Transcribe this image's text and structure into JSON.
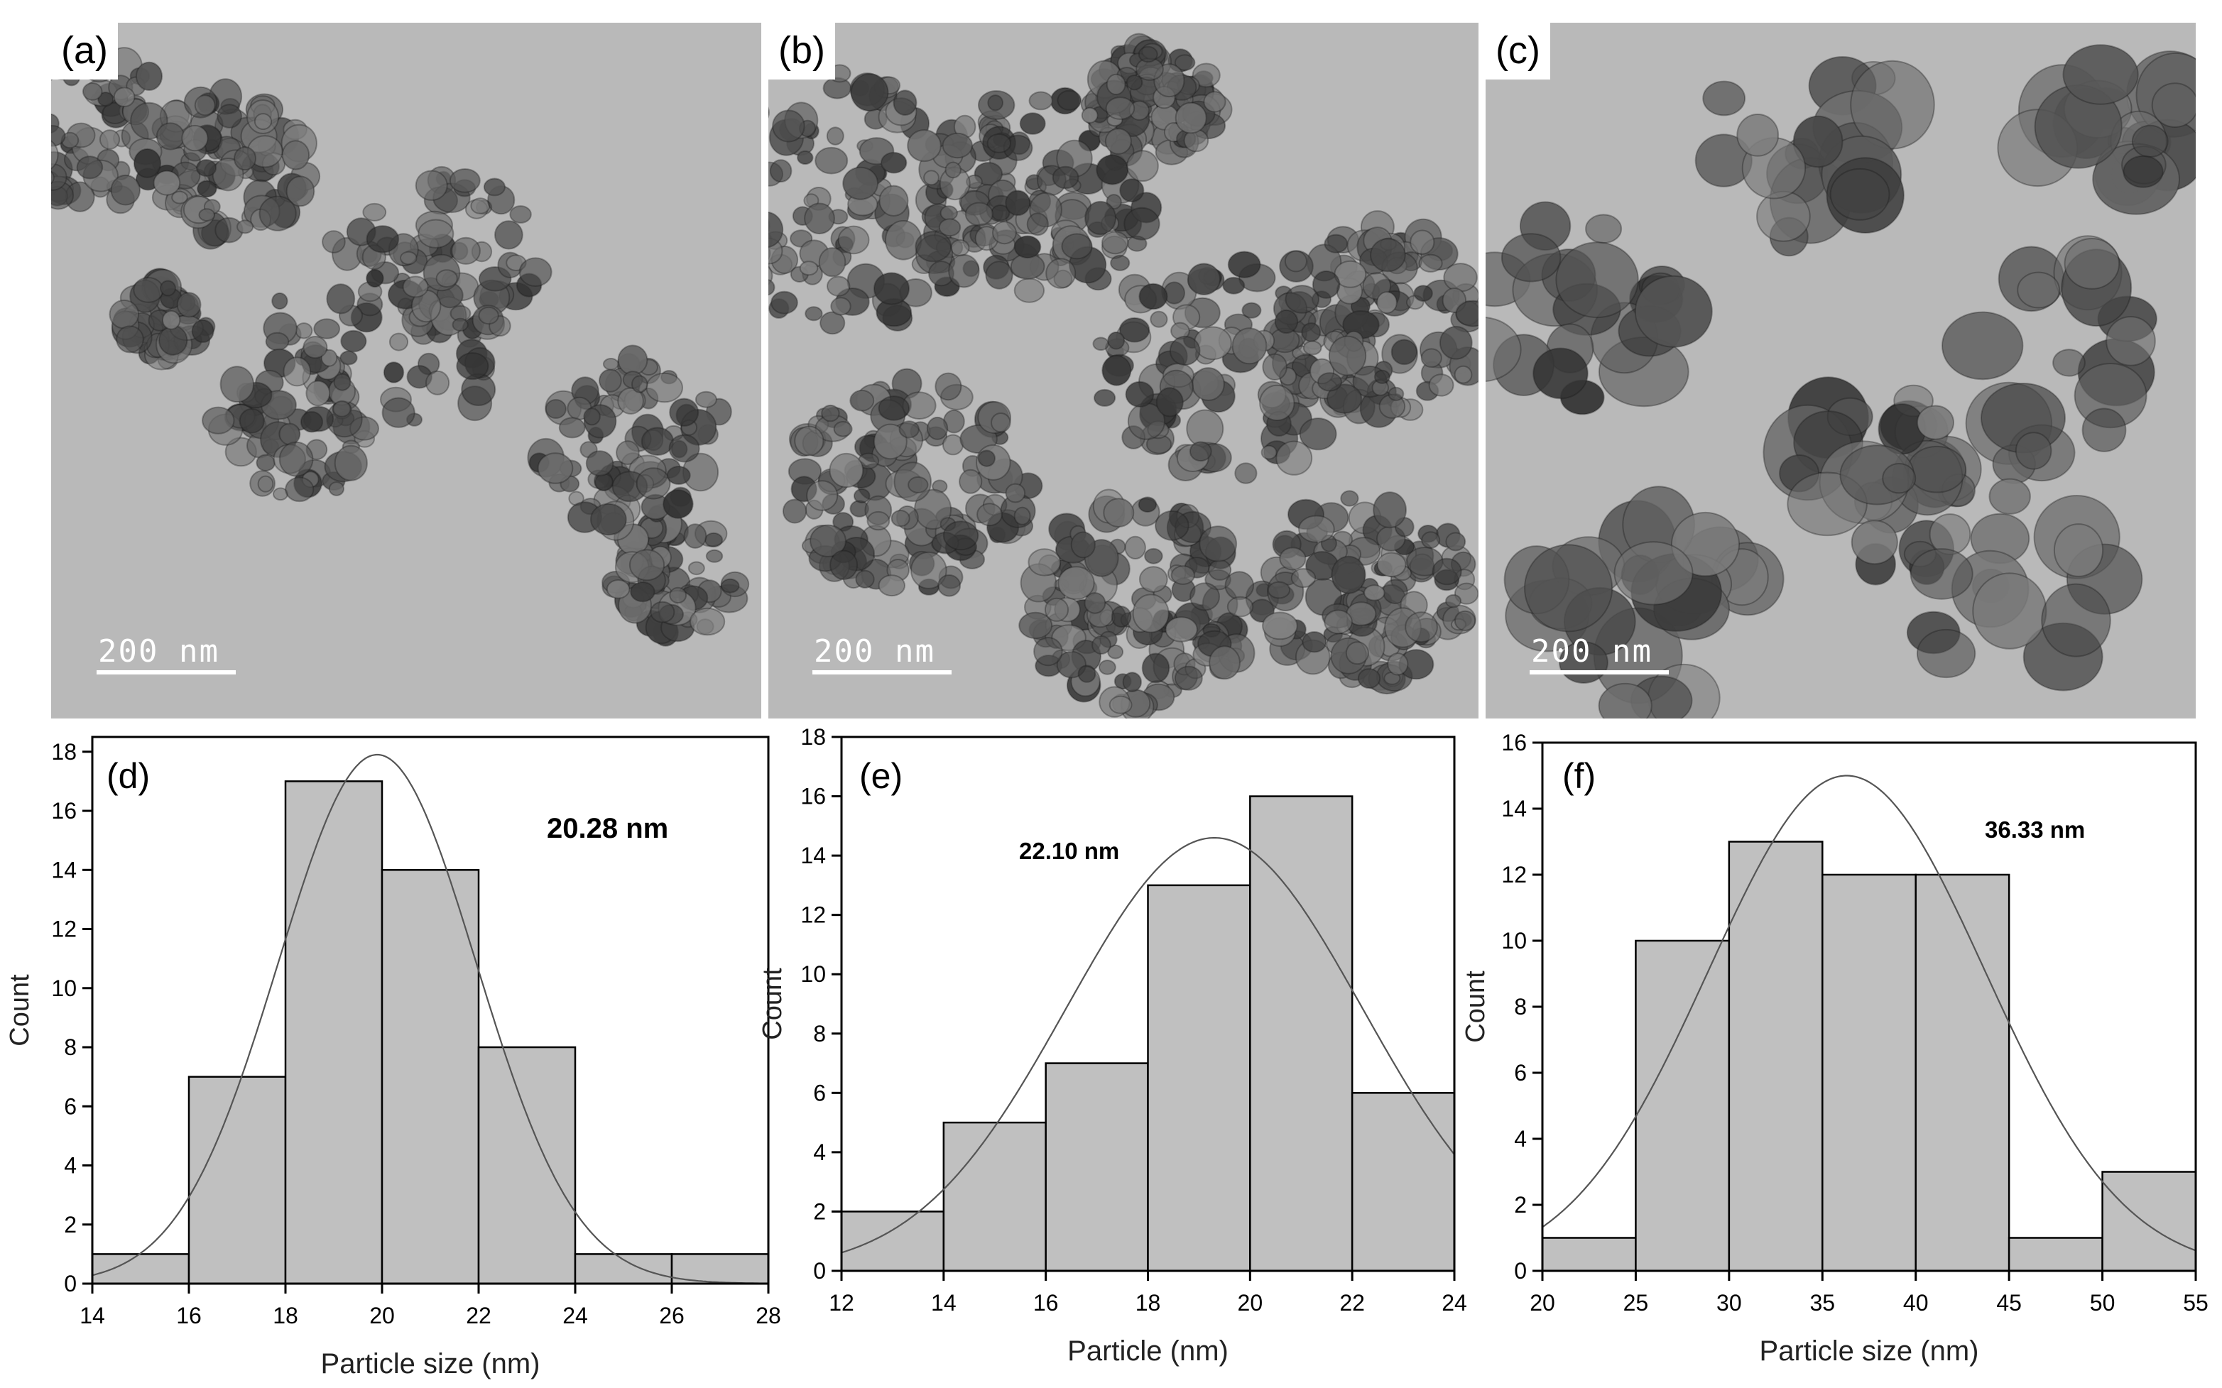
{
  "tem_panels": [
    {
      "label": "(a)",
      "scale_label": "200  nm"
    },
    {
      "label": "(b)",
      "scale_label": "200  nm"
    },
    {
      "label": "(c)",
      "scale_label": "200  nm"
    }
  ],
  "chart_data": [
    {
      "type": "bar",
      "panel_label": "(d)",
      "annotation": "20.28 nm",
      "xlabel": "Particle size (nm)",
      "ylabel": "Count",
      "xlim": [
        14,
        28
      ],
      "ylim": [
        0,
        18.5
      ],
      "xticks": [
        14,
        16,
        18,
        20,
        22,
        24,
        26,
        28
      ],
      "yticks": [
        0,
        2,
        4,
        6,
        8,
        10,
        12,
        14,
        16,
        18
      ],
      "bin_edges": [
        14,
        16,
        18,
        20,
        22,
        24,
        26,
        28
      ],
      "values": [
        1,
        7,
        17,
        14,
        8,
        1,
        1
      ],
      "fit": {
        "type": "gaussian",
        "center": 19.9,
        "sigma": 2.05,
        "peak": 17.9
      }
    },
    {
      "type": "bar",
      "panel_label": "(e)",
      "annotation": "22.10 nm",
      "xlabel": "Particle (nm)",
      "ylabel": "Count",
      "xlim": [
        12,
        24
      ],
      "ylim": [
        0,
        18
      ],
      "xticks": [
        12,
        14,
        16,
        18,
        20,
        22,
        24
      ],
      "yticks": [
        0,
        2,
        4,
        6,
        8,
        10,
        12,
        14,
        16,
        18
      ],
      "bin_edges": [
        12,
        14,
        16,
        18,
        20,
        22,
        24
      ],
      "values": [
        2,
        5,
        7,
        13,
        16,
        6
      ],
      "fit": {
        "type": "gaussian",
        "center": 19.3,
        "sigma": 2.9,
        "peak": 14.6
      }
    },
    {
      "type": "bar",
      "panel_label": "(f)",
      "annotation": "36.33 nm",
      "xlabel": "Particle size (nm)",
      "ylabel": "Count",
      "xlim": [
        20,
        55
      ],
      "ylim": [
        0,
        16
      ],
      "xticks": [
        20,
        25,
        30,
        35,
        40,
        45,
        50,
        55
      ],
      "yticks": [
        0,
        2,
        4,
        6,
        8,
        10,
        12,
        14,
        16
      ],
      "bin_edges": [
        20,
        25,
        30,
        35,
        40,
        45,
        50,
        55
      ],
      "values": [
        1,
        10,
        13,
        12,
        12,
        1,
        3
      ],
      "fit": {
        "type": "gaussian",
        "center": 36.3,
        "sigma": 7.4,
        "peak": 15.0
      }
    }
  ]
}
